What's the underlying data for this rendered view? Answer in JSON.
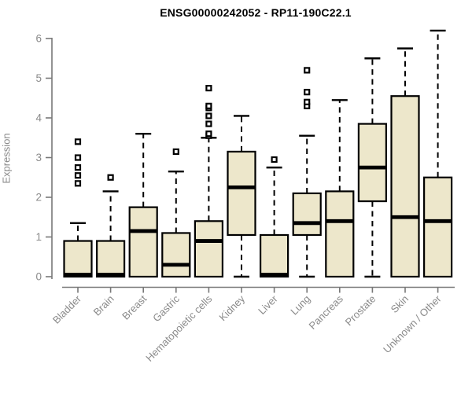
{
  "header": {
    "title": "ENSG00000242052 - RP11-190C22.1"
  },
  "chart_data": {
    "type": "boxplot",
    "title": "ENSG00000242052 - RP11-190C22.1",
    "xlabel": "",
    "ylabel": "Expression",
    "ylim": [
      0,
      6
    ],
    "yticks": [
      0,
      1,
      2,
      3,
      4,
      5,
      6
    ],
    "grid": false,
    "legend": "none",
    "categories": [
      "Bladder",
      "Brain",
      "Breast",
      "Gastric",
      "Hematopoietic cells",
      "Kidney",
      "Liver",
      "Lung",
      "Pancreas",
      "Prostate",
      "Skin",
      "Unknown / Other"
    ],
    "series": [
      {
        "name": "Bladder",
        "whisker_low": 0,
        "q1": 0,
        "median": 0.05,
        "q3": 0.9,
        "whisker_high": 1.35,
        "outliers": [
          2.35,
          2.55,
          2.75,
          3.0,
          3.4
        ]
      },
      {
        "name": "Brain",
        "whisker_low": 0,
        "q1": 0,
        "median": 0.05,
        "q3": 0.9,
        "whisker_high": 2.15,
        "outliers": [
          2.5
        ]
      },
      {
        "name": "Breast",
        "whisker_low": 0,
        "q1": 0,
        "median": 1.15,
        "q3": 1.75,
        "whisker_high": 3.6,
        "outliers": []
      },
      {
        "name": "Gastric",
        "whisker_low": 0,
        "q1": 0,
        "median": 0.3,
        "q3": 1.1,
        "whisker_high": 2.65,
        "outliers": [
          3.15
        ]
      },
      {
        "name": "Hematopoietic cells",
        "whisker_low": 0,
        "q1": 0,
        "median": 0.9,
        "q3": 1.4,
        "whisker_high": 3.5,
        "outliers": [
          3.55,
          3.6,
          3.85,
          4.05,
          4.25,
          4.3,
          4.75
        ]
      },
      {
        "name": "Kidney",
        "whisker_low": 0,
        "q1": 1.05,
        "median": 2.25,
        "q3": 3.15,
        "whisker_high": 4.05,
        "outliers": []
      },
      {
        "name": "Liver",
        "whisker_low": 0,
        "q1": 0,
        "median": 0.05,
        "q3": 1.05,
        "whisker_high": 2.75,
        "outliers": [
          2.95
        ]
      },
      {
        "name": "Lung",
        "whisker_low": 0,
        "q1": 1.05,
        "median": 1.35,
        "q3": 2.1,
        "whisker_high": 3.55,
        "outliers": [
          4.3,
          4.4,
          4.65,
          5.2
        ]
      },
      {
        "name": "Pancreas",
        "whisker_low": 0,
        "q1": 0,
        "median": 1.4,
        "q3": 2.15,
        "whisker_high": 4.45,
        "outliers": []
      },
      {
        "name": "Prostate",
        "whisker_low": 0,
        "q1": 1.9,
        "median": 2.75,
        "q3": 3.85,
        "whisker_high": 5.5,
        "outliers": []
      },
      {
        "name": "Skin",
        "whisker_low": 0,
        "q1": 0,
        "median": 1.5,
        "q3": 4.55,
        "whisker_high": 5.75,
        "outliers": []
      },
      {
        "name": "Unknown / Other",
        "whisker_low": 0,
        "q1": 0,
        "median": 1.4,
        "q3": 2.5,
        "whisker_high": 6.2,
        "outliers": []
      }
    ],
    "colors": {
      "box_fill": "#ede7cb",
      "box_stroke": "#000000",
      "median": "#000000",
      "whisker": "#000000",
      "axis": "#787878",
      "tick_label": "#8a8a8a",
      "title": "#000000",
      "background": "#ffffff"
    }
  }
}
